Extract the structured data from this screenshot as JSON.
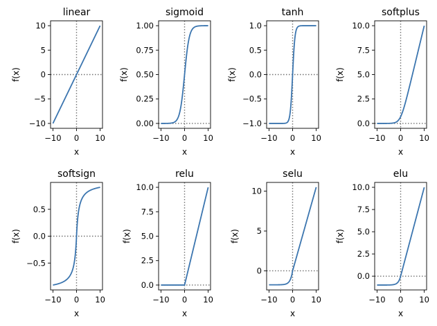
{
  "colors": {
    "line": "#3b75af",
    "refline": "#707070",
    "axes": "#000000"
  },
  "chart_data": [
    {
      "type": "line",
      "title": "linear",
      "func": "linear",
      "xlabel": "x",
      "ylabel": "f(x)",
      "x": [
        -10,
        10
      ],
      "xlim": [
        -11,
        11
      ],
      "ylim": [
        -11,
        11
      ],
      "xticks": [
        -10,
        0,
        10
      ],
      "xticklabels": [
        "−10",
        "0",
        "10"
      ],
      "yticks": [
        -10,
        -5,
        0,
        5,
        10
      ],
      "yticklabels": [
        "−10",
        "−5",
        "0",
        "5",
        "10"
      ],
      "reference_lines": {
        "x": 0,
        "y": 0,
        "style": "dotted"
      },
      "grid": false
    },
    {
      "type": "line",
      "title": "sigmoid",
      "func": "sigmoid",
      "xlabel": "x",
      "ylabel": "f(x)",
      "x": [
        -10,
        10
      ],
      "xlim": [
        -11,
        11
      ],
      "ylim": [
        -0.05,
        1.05
      ],
      "xticks": [
        -10,
        0,
        10
      ],
      "xticklabels": [
        "−10",
        "0",
        "10"
      ],
      "yticks": [
        0,
        0.25,
        0.5,
        0.75,
        1
      ],
      "yticklabels": [
        "0.00",
        "0.25",
        "0.50",
        "0.75",
        "1.00"
      ],
      "reference_lines": {
        "x": 0,
        "y": 0,
        "style": "dotted"
      },
      "grid": false
    },
    {
      "type": "line",
      "title": "tanh",
      "func": "tanh",
      "xlabel": "x",
      "ylabel": "f(x)",
      "x": [
        -10,
        10
      ],
      "xlim": [
        -11,
        11
      ],
      "ylim": [
        -1.1,
        1.1
      ],
      "xticks": [
        -10,
        0,
        10
      ],
      "xticklabels": [
        "−10",
        "0",
        "10"
      ],
      "yticks": [
        -1,
        -0.5,
        0,
        0.5,
        1
      ],
      "yticklabels": [
        "−1.0",
        "−0.5",
        "0.0",
        "0.5",
        "1.0"
      ],
      "reference_lines": {
        "x": 0,
        "y": 0,
        "style": "dotted"
      },
      "grid": false
    },
    {
      "type": "line",
      "title": "softplus",
      "func": "softplus",
      "xlabel": "x",
      "ylabel": "f(x)",
      "x": [
        -10,
        10
      ],
      "xlim": [
        -11,
        11
      ],
      "ylim": [
        -0.5,
        10.5
      ],
      "xticks": [
        -10,
        0,
        10
      ],
      "xticklabels": [
        "−10",
        "0",
        "10"
      ],
      "yticks": [
        0,
        2.5,
        5,
        7.5,
        10
      ],
      "yticklabels": [
        "0.0",
        "2.5",
        "5.0",
        "7.5",
        "10.0"
      ],
      "reference_lines": {
        "x": 0,
        "y": 0,
        "style": "dotted"
      },
      "grid": false
    },
    {
      "type": "line",
      "title": "softsign",
      "func": "softsign",
      "xlabel": "x",
      "ylabel": "f(x)",
      "x": [
        -10,
        10
      ],
      "xlim": [
        -11,
        11
      ],
      "ylim": [
        -1.0,
        1.0
      ],
      "xticks": [
        -10,
        0,
        10
      ],
      "xticklabels": [
        "−10",
        "0",
        "10"
      ],
      "yticks": [
        -0.5,
        0,
        0.5
      ],
      "yticklabels": [
        "−0.5",
        "0.0",
        "0.5"
      ],
      "reference_lines": {
        "x": 0,
        "y": 0,
        "style": "dotted"
      },
      "grid": false
    },
    {
      "type": "line",
      "title": "relu",
      "func": "relu",
      "xlabel": "x",
      "ylabel": "f(x)",
      "x": [
        -10,
        10
      ],
      "xlim": [
        -11,
        11
      ],
      "ylim": [
        -0.5,
        10.5
      ],
      "xticks": [
        -10,
        0,
        10
      ],
      "xticklabels": [
        "−10",
        "0",
        "10"
      ],
      "yticks": [
        0,
        2.5,
        5,
        7.5,
        10
      ],
      "yticklabels": [
        "0.0",
        "2.5",
        "5.0",
        "7.5",
        "10.0"
      ],
      "reference_lines": {
        "x": 0,
        "y": 0,
        "style": "dotted"
      },
      "grid": false
    },
    {
      "type": "line",
      "title": "selu",
      "func": "selu",
      "xlabel": "x",
      "ylabel": "f(x)",
      "x": [
        -10,
        10
      ],
      "xlim": [
        -11,
        11
      ],
      "ylim": [
        -2.4,
        11.1
      ],
      "xticks": [
        -10,
        0,
        10
      ],
      "xticklabels": [
        "−10",
        "0",
        "10"
      ],
      "yticks": [
        0,
        5,
        10
      ],
      "yticklabels": [
        "0",
        "5",
        "10"
      ],
      "reference_lines": {
        "x": 0,
        "y": 0,
        "style": "dotted"
      },
      "grid": false
    },
    {
      "type": "line",
      "title": "elu",
      "func": "elu",
      "xlabel": "x",
      "ylabel": "f(x)",
      "x": [
        -10,
        10
      ],
      "xlim": [
        -11,
        11
      ],
      "ylim": [
        -1.55,
        10.55
      ],
      "xticks": [
        -10,
        0,
        10
      ],
      "xticklabels": [
        "−10",
        "0",
        "10"
      ],
      "yticks": [
        0,
        2.5,
        5,
        7.5,
        10
      ],
      "yticklabels": [
        "0.0",
        "2.5",
        "5.0",
        "7.5",
        "10.0"
      ],
      "reference_lines": {
        "x": 0,
        "y": 0,
        "style": "dotted"
      },
      "grid": false
    }
  ]
}
